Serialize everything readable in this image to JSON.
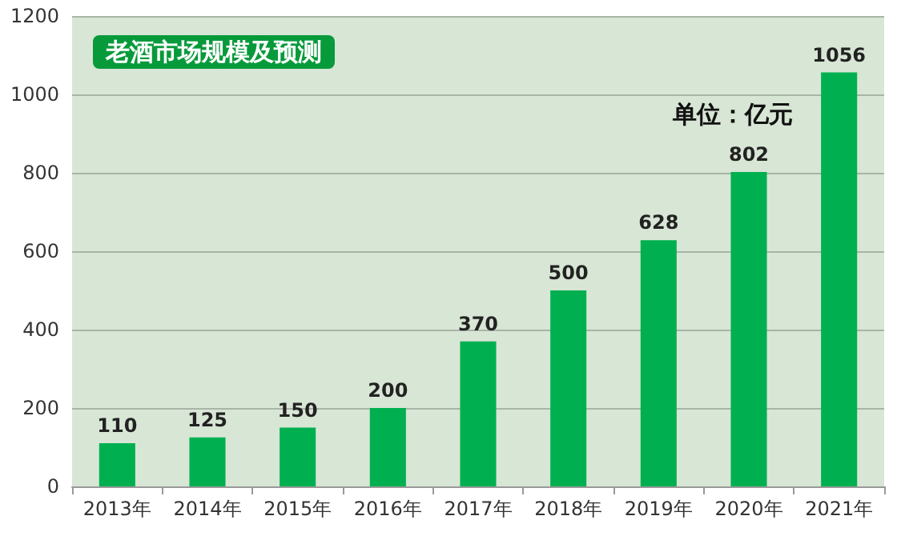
{
  "chart_data": {
    "type": "bar",
    "title": "老酒市场规模及预测",
    "annotations": [
      "单位：亿元"
    ],
    "categories": [
      "2013年",
      "2014年",
      "2015年",
      "2016年",
      "2017年",
      "2018年",
      "2019年",
      "2020年",
      "2021年"
    ],
    "values": [
      110,
      125,
      150,
      200,
      370,
      500,
      628,
      802,
      1056
    ],
    "color": "#00b050",
    "ylim": [
      0,
      1200
    ],
    "yticks": [
      0,
      200,
      400,
      600,
      800,
      1000,
      1200
    ],
    "grid": "y",
    "data_labels": true
  }
}
